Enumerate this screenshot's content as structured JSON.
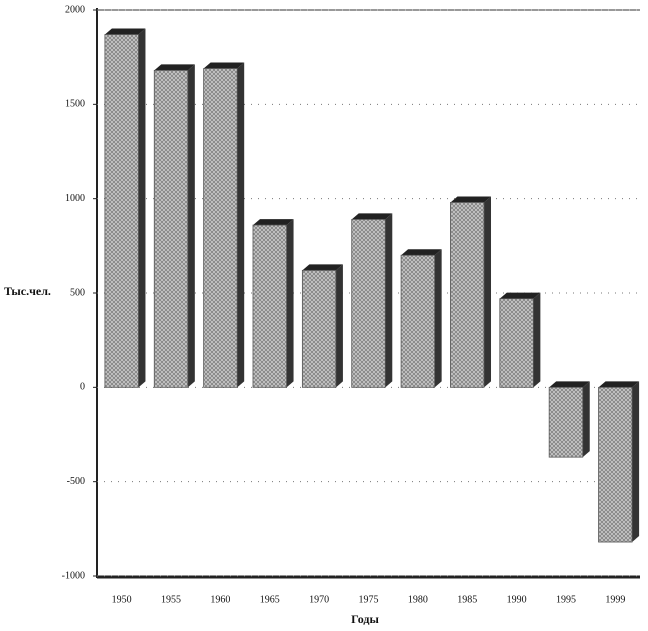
{
  "chart_data": {
    "type": "bar3d",
    "y_label": "Тыс.чел.",
    "x_label": "Годы",
    "categories": [
      "1950",
      "1955",
      "1960",
      "1965",
      "1970",
      "1975",
      "1980",
      "1985",
      "1990",
      "1995",
      "1999"
    ],
    "values": [
      1870,
      1680,
      1690,
      860,
      620,
      890,
      700,
      980,
      470,
      -370,
      -820
    ],
    "color": "#b8b8b8",
    "ylim": [
      -1000,
      2000
    ],
    "yticks": [
      -1000,
      -500,
      0,
      500,
      1000,
      1500,
      2000
    ],
    "grid": true
  }
}
